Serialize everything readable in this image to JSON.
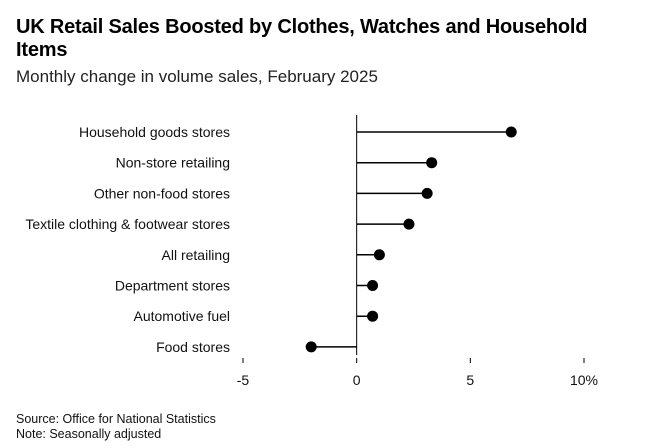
{
  "header": {
    "title": "UK Retail Sales Boosted by Clothes, Watches and Household Items",
    "subtitle": "Monthly change in volume sales, February 2025"
  },
  "footer": {
    "source": "Source: Office for National Statistics",
    "note": "Note: Seasonally adjusted"
  },
  "chart_data": {
    "type": "lollipop",
    "orientation": "horizontal",
    "title": "UK Retail Sales Boosted by Clothes, Watches and Household Items",
    "subtitle": "Monthly change in volume sales, February 2025",
    "categories": [
      "Household goods stores",
      "Non-store retailing",
      "Other non-food stores",
      "Textile clothing & footwear stores",
      "All retailing",
      "Department stores",
      "Automotive fuel",
      "Food stores"
    ],
    "values": [
      6.8,
      3.3,
      3.1,
      2.3,
      1.0,
      0.7,
      0.7,
      -2.0
    ],
    "xlim": [
      -5,
      10
    ],
    "xticks": [
      -5,
      0,
      5,
      10
    ],
    "xtick_labels": [
      "-5",
      "0",
      "5",
      "10%"
    ],
    "xlabel": "",
    "ylabel": "",
    "grid": false,
    "legend": "none",
    "colors": {
      "marker": "#000000",
      "stem": "#000000",
      "axis": "#000000"
    }
  }
}
